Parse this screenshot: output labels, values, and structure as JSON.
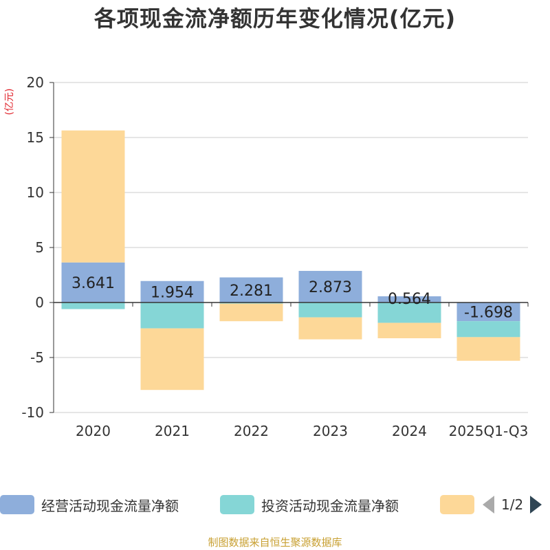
{
  "chart_data": {
    "type": "stacked-bar",
    "title": "各项现金流净额历年变化情况(亿元)",
    "ylabel": "(亿元)",
    "xlabel": "",
    "categories": [
      "2020",
      "2021",
      "2022",
      "2023",
      "2024",
      "2025Q1-Q3"
    ],
    "ylim": [
      -10,
      20
    ],
    "yticks": [
      20,
      15,
      10,
      5,
      0,
      -5,
      -10
    ],
    "grid": true,
    "series": [
      {
        "name": "经营活动现金流量净额",
        "color": "#8eaedb",
        "values": [
          3.641,
          1.954,
          2.281,
          2.873,
          0.564,
          -1.698
        ],
        "labels": [
          "3.641",
          "1.954",
          "2.281",
          "2.873",
          "0.564",
          "-1.698"
        ]
      },
      {
        "name": "投资活动现金流量净额",
        "color": "#85d6d6",
        "values": [
          -0.6,
          -2.35,
          -0.1,
          -1.35,
          -1.85,
          -1.45
        ]
      },
      {
        "name": "",
        "color": "#fdd898",
        "values": [
          12.0,
          -5.6,
          -1.6,
          -2.0,
          -1.4,
          -2.15
        ]
      }
    ]
  },
  "legend": {
    "items": [
      {
        "label": "经营活动现金流量净额",
        "color": "#8eaedb"
      },
      {
        "label": "投资活动现金流量净额",
        "color": "#85d6d6"
      },
      {
        "label": "",
        "color": "#fdd898"
      }
    ],
    "page": "1/2"
  },
  "source": "制图数据来自恒生聚源数据库"
}
